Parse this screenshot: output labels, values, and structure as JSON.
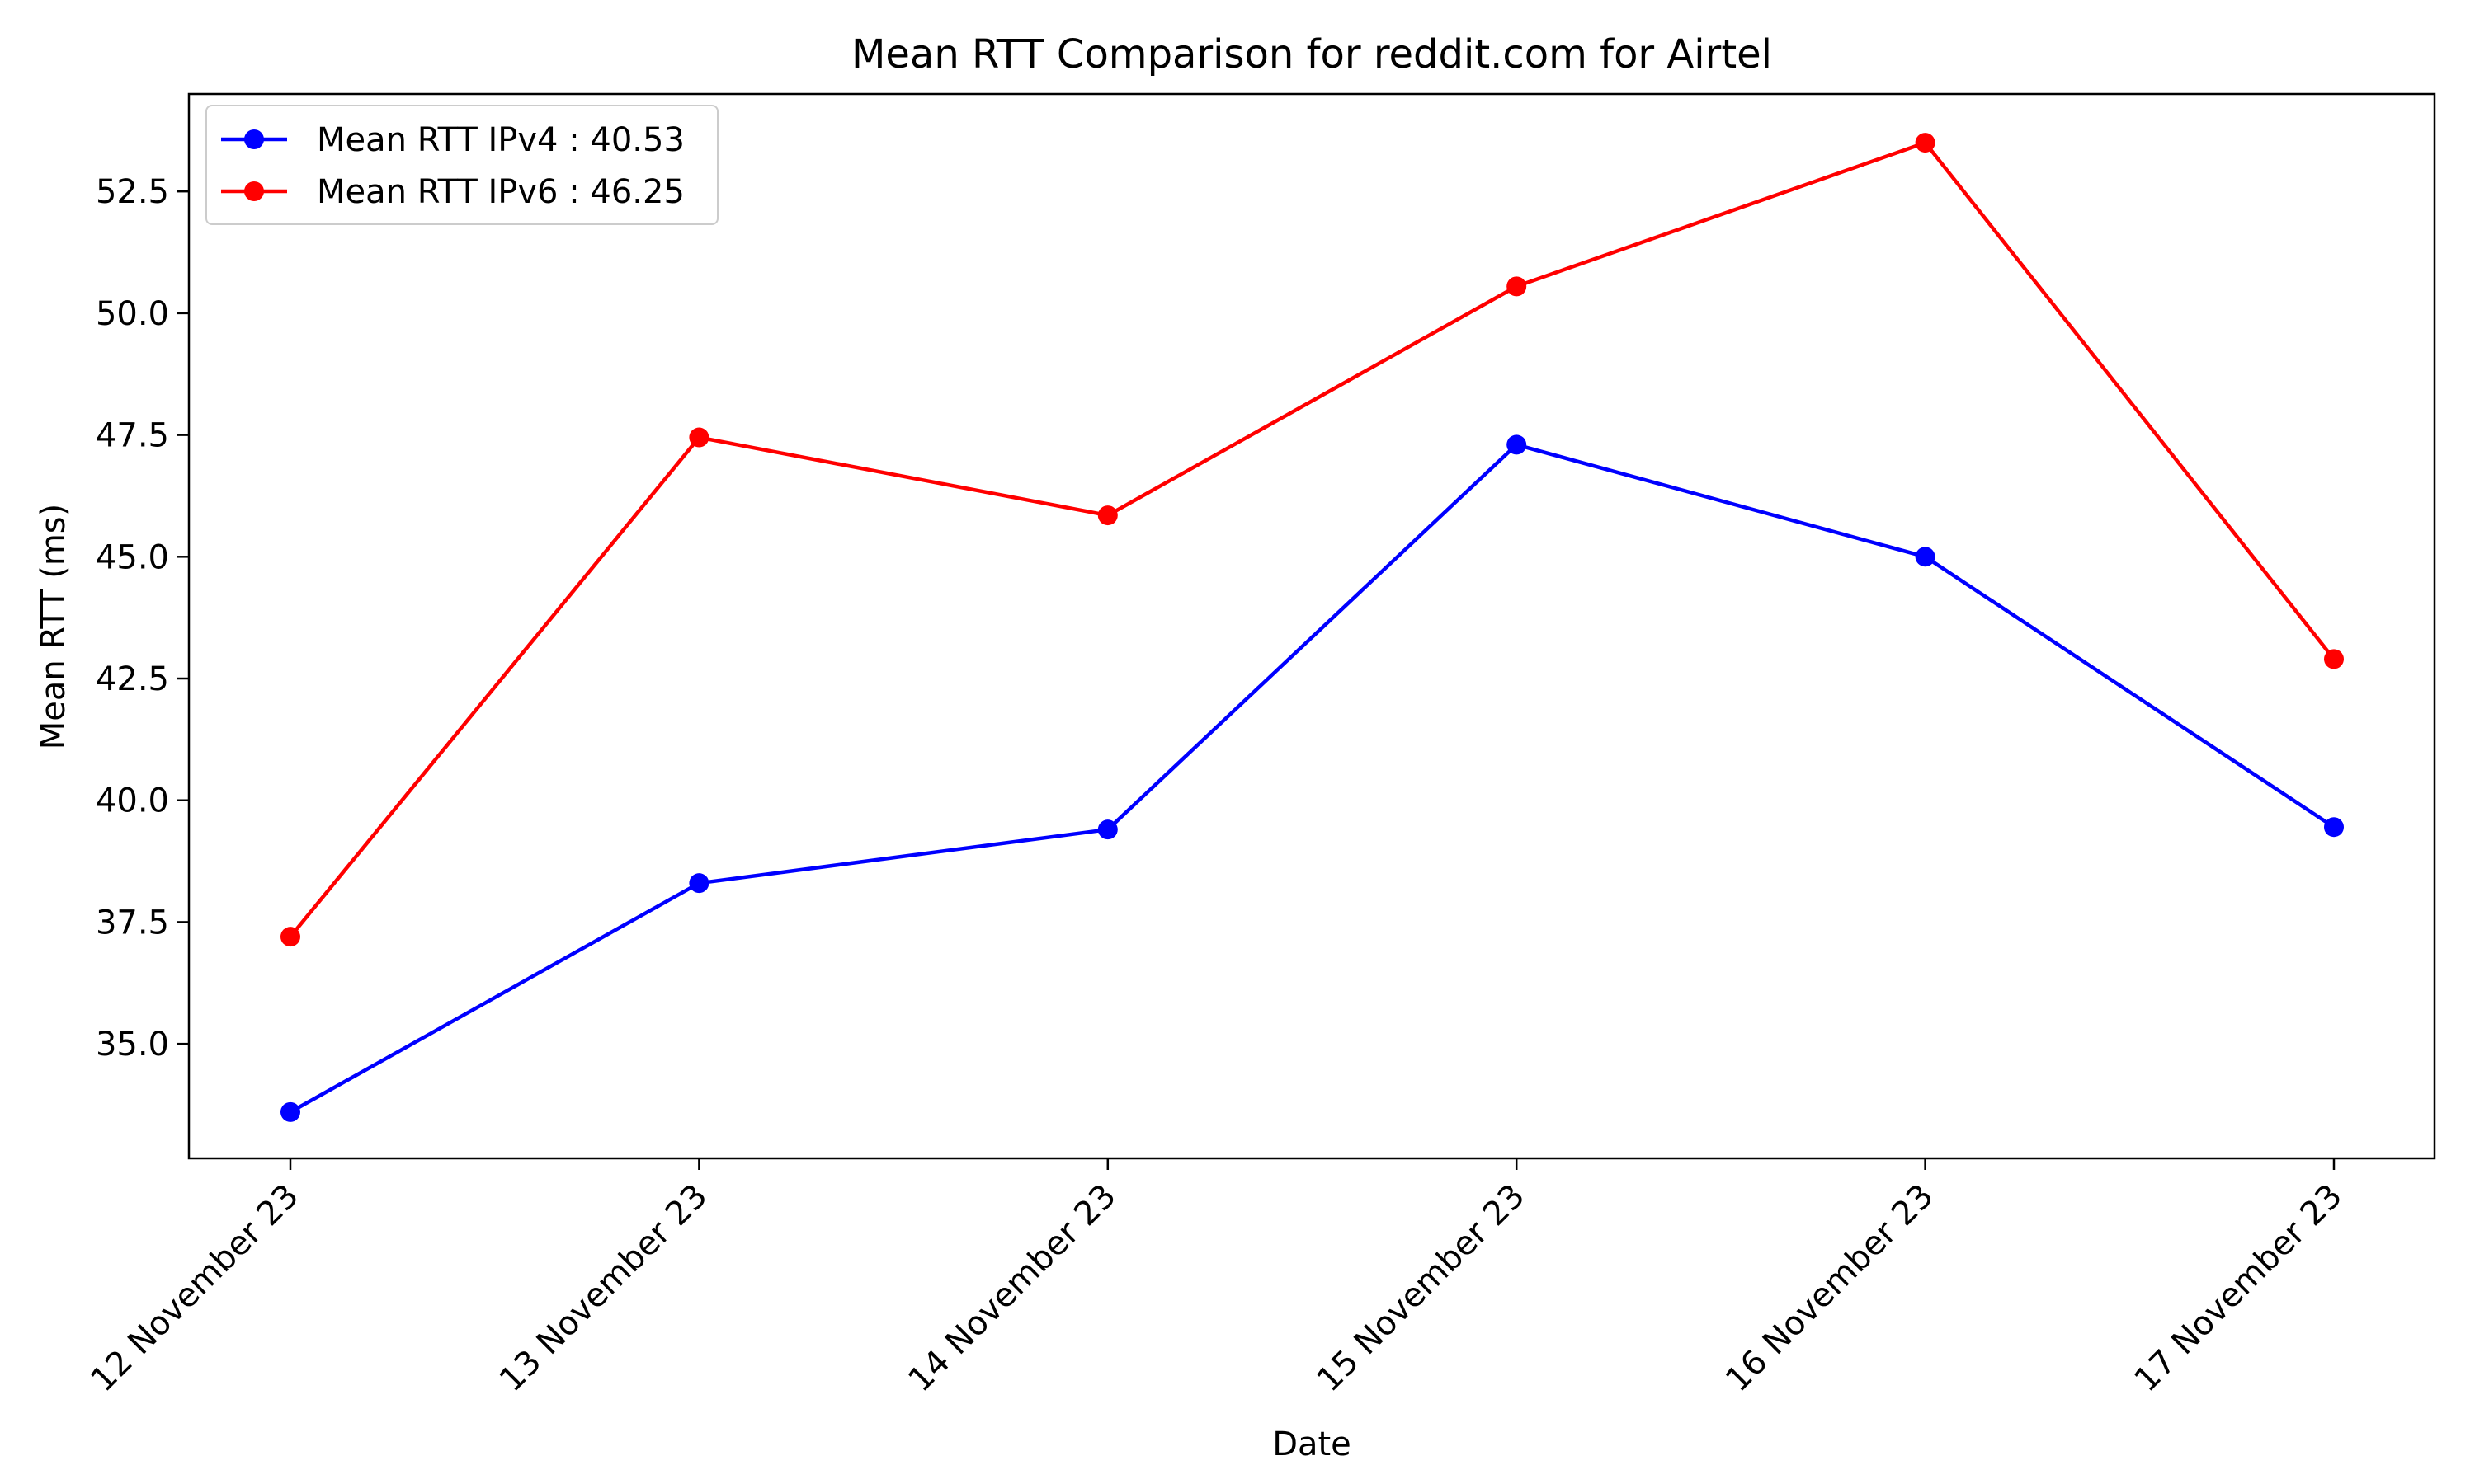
{
  "chart_data": {
    "type": "line",
    "title": "Mean RTT Comparison for reddit.com for Airtel",
    "xlabel": "Date",
    "ylabel": "Mean RTT (ms)",
    "categories": [
      "12 November 23",
      "13 November 23",
      "14 November 23",
      "15 November 23",
      "16 November 23",
      "17 November 23"
    ],
    "ylim": [
      32.65,
      54.5
    ],
    "yticks": [
      35.0,
      37.5,
      40.0,
      42.5,
      45.0,
      47.5,
      50.0,
      52.5
    ],
    "ytick_labels": [
      "35.0",
      "37.5",
      "40.0",
      "42.5",
      "45.0",
      "47.5",
      "50.0",
      "52.5"
    ],
    "grid": false,
    "legend_position": "top-left",
    "series": [
      {
        "name": "Mean RTT IPv4 : 40.53",
        "color": "#0000ff",
        "marker": "circle",
        "values": [
          33.6,
          38.3,
          39.4,
          47.3,
          45.0,
          39.45
        ]
      },
      {
        "name": "Mean RTT IPv6 : 46.25",
        "color": "#ff0000",
        "marker": "circle",
        "values": [
          37.2,
          47.45,
          45.85,
          50.55,
          53.5,
          42.9
        ]
      }
    ]
  }
}
